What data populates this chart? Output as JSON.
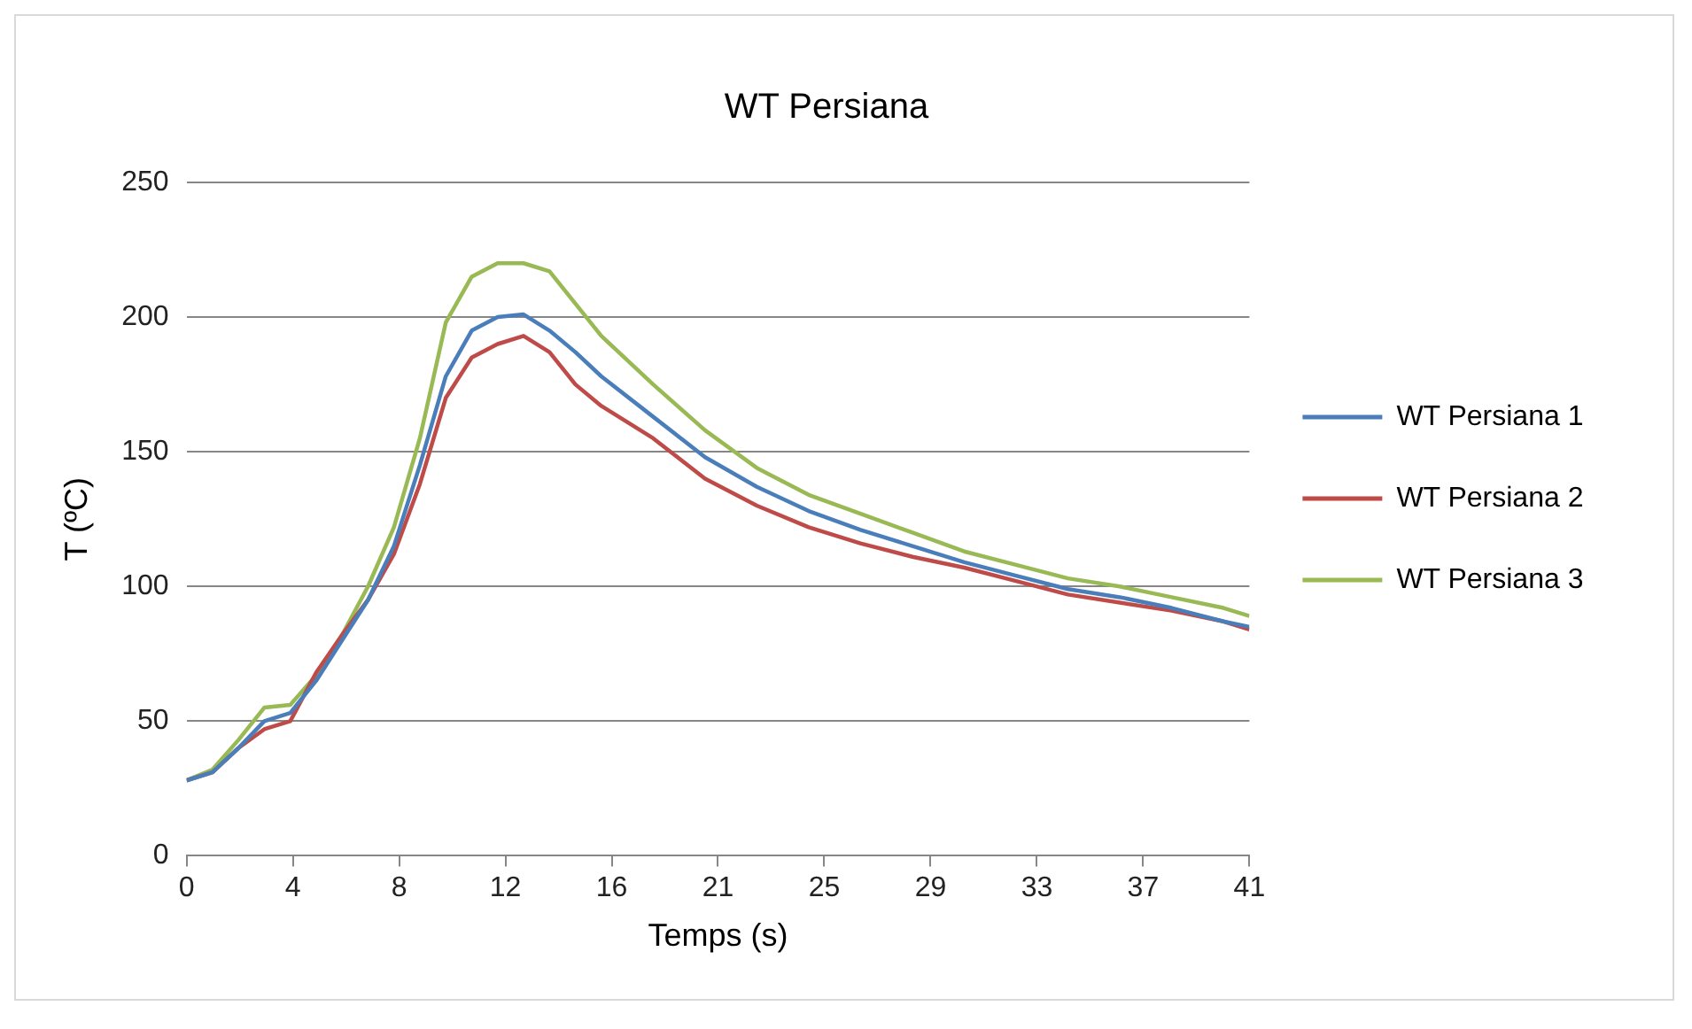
{
  "chart_data": {
    "type": "line",
    "title": "WT Persiana",
    "xlabel": "Temps (s)",
    "ylabel": "T (ºC)",
    "x": [
      0,
      1,
      2,
      3,
      4,
      5,
      6,
      7,
      8,
      9,
      10,
      11,
      12,
      13,
      14,
      15,
      16,
      18,
      20,
      22,
      24,
      26,
      28,
      30,
      32,
      34,
      36,
      38,
      40,
      41
    ],
    "series": [
      {
        "name": "WT Persiana 1",
        "color": "#4a7ebb",
        "values": [
          28,
          31,
          40,
          50,
          53,
          65,
          80,
          95,
          115,
          145,
          178,
          195,
          200,
          201,
          195,
          187,
          178,
          163,
          148,
          137,
          128,
          121,
          115,
          109,
          104,
          99,
          96,
          92,
          87,
          85
        ]
      },
      {
        "name": "WT Persiana 2",
        "color": "#be4b48",
        "values": [
          28,
          31,
          40,
          47,
          50,
          68,
          82,
          95,
          112,
          138,
          170,
          185,
          190,
          193,
          187,
          175,
          167,
          155,
          140,
          130,
          122,
          116,
          111,
          107,
          102,
          97,
          94,
          91,
          87,
          84
        ]
      },
      {
        "name": "WT Persiana 3",
        "color": "#98b954",
        "values": [
          28,
          32,
          43,
          55,
          56,
          67,
          82,
          100,
          122,
          155,
          198,
          215,
          220,
          220,
          217,
          205,
          193,
          175,
          158,
          144,
          134,
          127,
          120,
          113,
          108,
          103,
          100,
          96,
          92,
          89
        ]
      }
    ],
    "xlim": [
      0,
      41
    ],
    "xticks": [
      0,
      {
        "value": 4.1,
        "label": "4"
      },
      {
        "value": 8.2,
        "label": "8"
      },
      {
        "value": 12.3,
        "label": "12"
      },
      {
        "value": 16.4,
        "label": "16"
      },
      {
        "value": 20.5,
        "label": "21"
      },
      {
        "value": 24.6,
        "label": "25"
      },
      {
        "value": 28.7,
        "label": "29"
      },
      {
        "value": 32.8,
        "label": "33"
      },
      {
        "value": 36.9,
        "label": "37"
      },
      41
    ],
    "ylim": [
      0,
      250
    ],
    "yticks": [
      0,
      50,
      100,
      150,
      200,
      250
    ],
    "grid": "y",
    "legend": "right",
    "marker": "none",
    "line_style": "solid"
  }
}
